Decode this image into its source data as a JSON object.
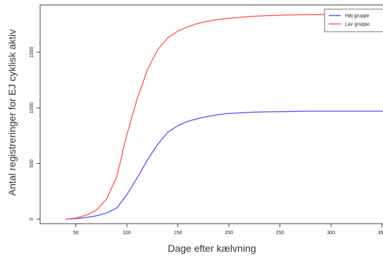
{
  "chart_data": {
    "type": "line",
    "title": "",
    "xlabel": "Dage efter kælvning",
    "ylabel": "Antal registreringer for EJ cyklisk aktiv",
    "xlim": [
      15,
      362
    ],
    "ylim": [
      -40,
      1925
    ],
    "x_ticks": [
      50,
      100,
      150,
      200,
      250,
      300,
      350
    ],
    "y_ticks": [
      0,
      500,
      1000,
      1500
    ],
    "grid": false,
    "legend_position": "top-right",
    "series": [
      {
        "name": "Høj gruppe",
        "color": "#5b5bff",
        "x": [
          40,
          50,
          60,
          70,
          80,
          90,
          100,
          110,
          120,
          130,
          140,
          150,
          160,
          170,
          180,
          190,
          200,
          220,
          240,
          260,
          280,
          300,
          320,
          340,
          362
        ],
        "y": [
          0,
          5,
          15,
          30,
          55,
          100,
          220,
          370,
          530,
          670,
          780,
          840,
          880,
          905,
          925,
          940,
          950,
          960,
          965,
          968,
          970,
          970,
          970,
          970,
          970
        ]
      },
      {
        "name": "Lav gruppe",
        "color": "#ff5b5b",
        "x": [
          40,
          50,
          60,
          70,
          80,
          90,
          100,
          110,
          120,
          130,
          140,
          150,
          160,
          170,
          180,
          190,
          200,
          220,
          240,
          260,
          280,
          300,
          320,
          340,
          362
        ],
        "y": [
          0,
          10,
          35,
          80,
          180,
          380,
          760,
          1080,
          1340,
          1520,
          1630,
          1690,
          1730,
          1760,
          1780,
          1795,
          1805,
          1820,
          1830,
          1835,
          1838,
          1840,
          1840,
          1840,
          1840
        ]
      }
    ]
  }
}
